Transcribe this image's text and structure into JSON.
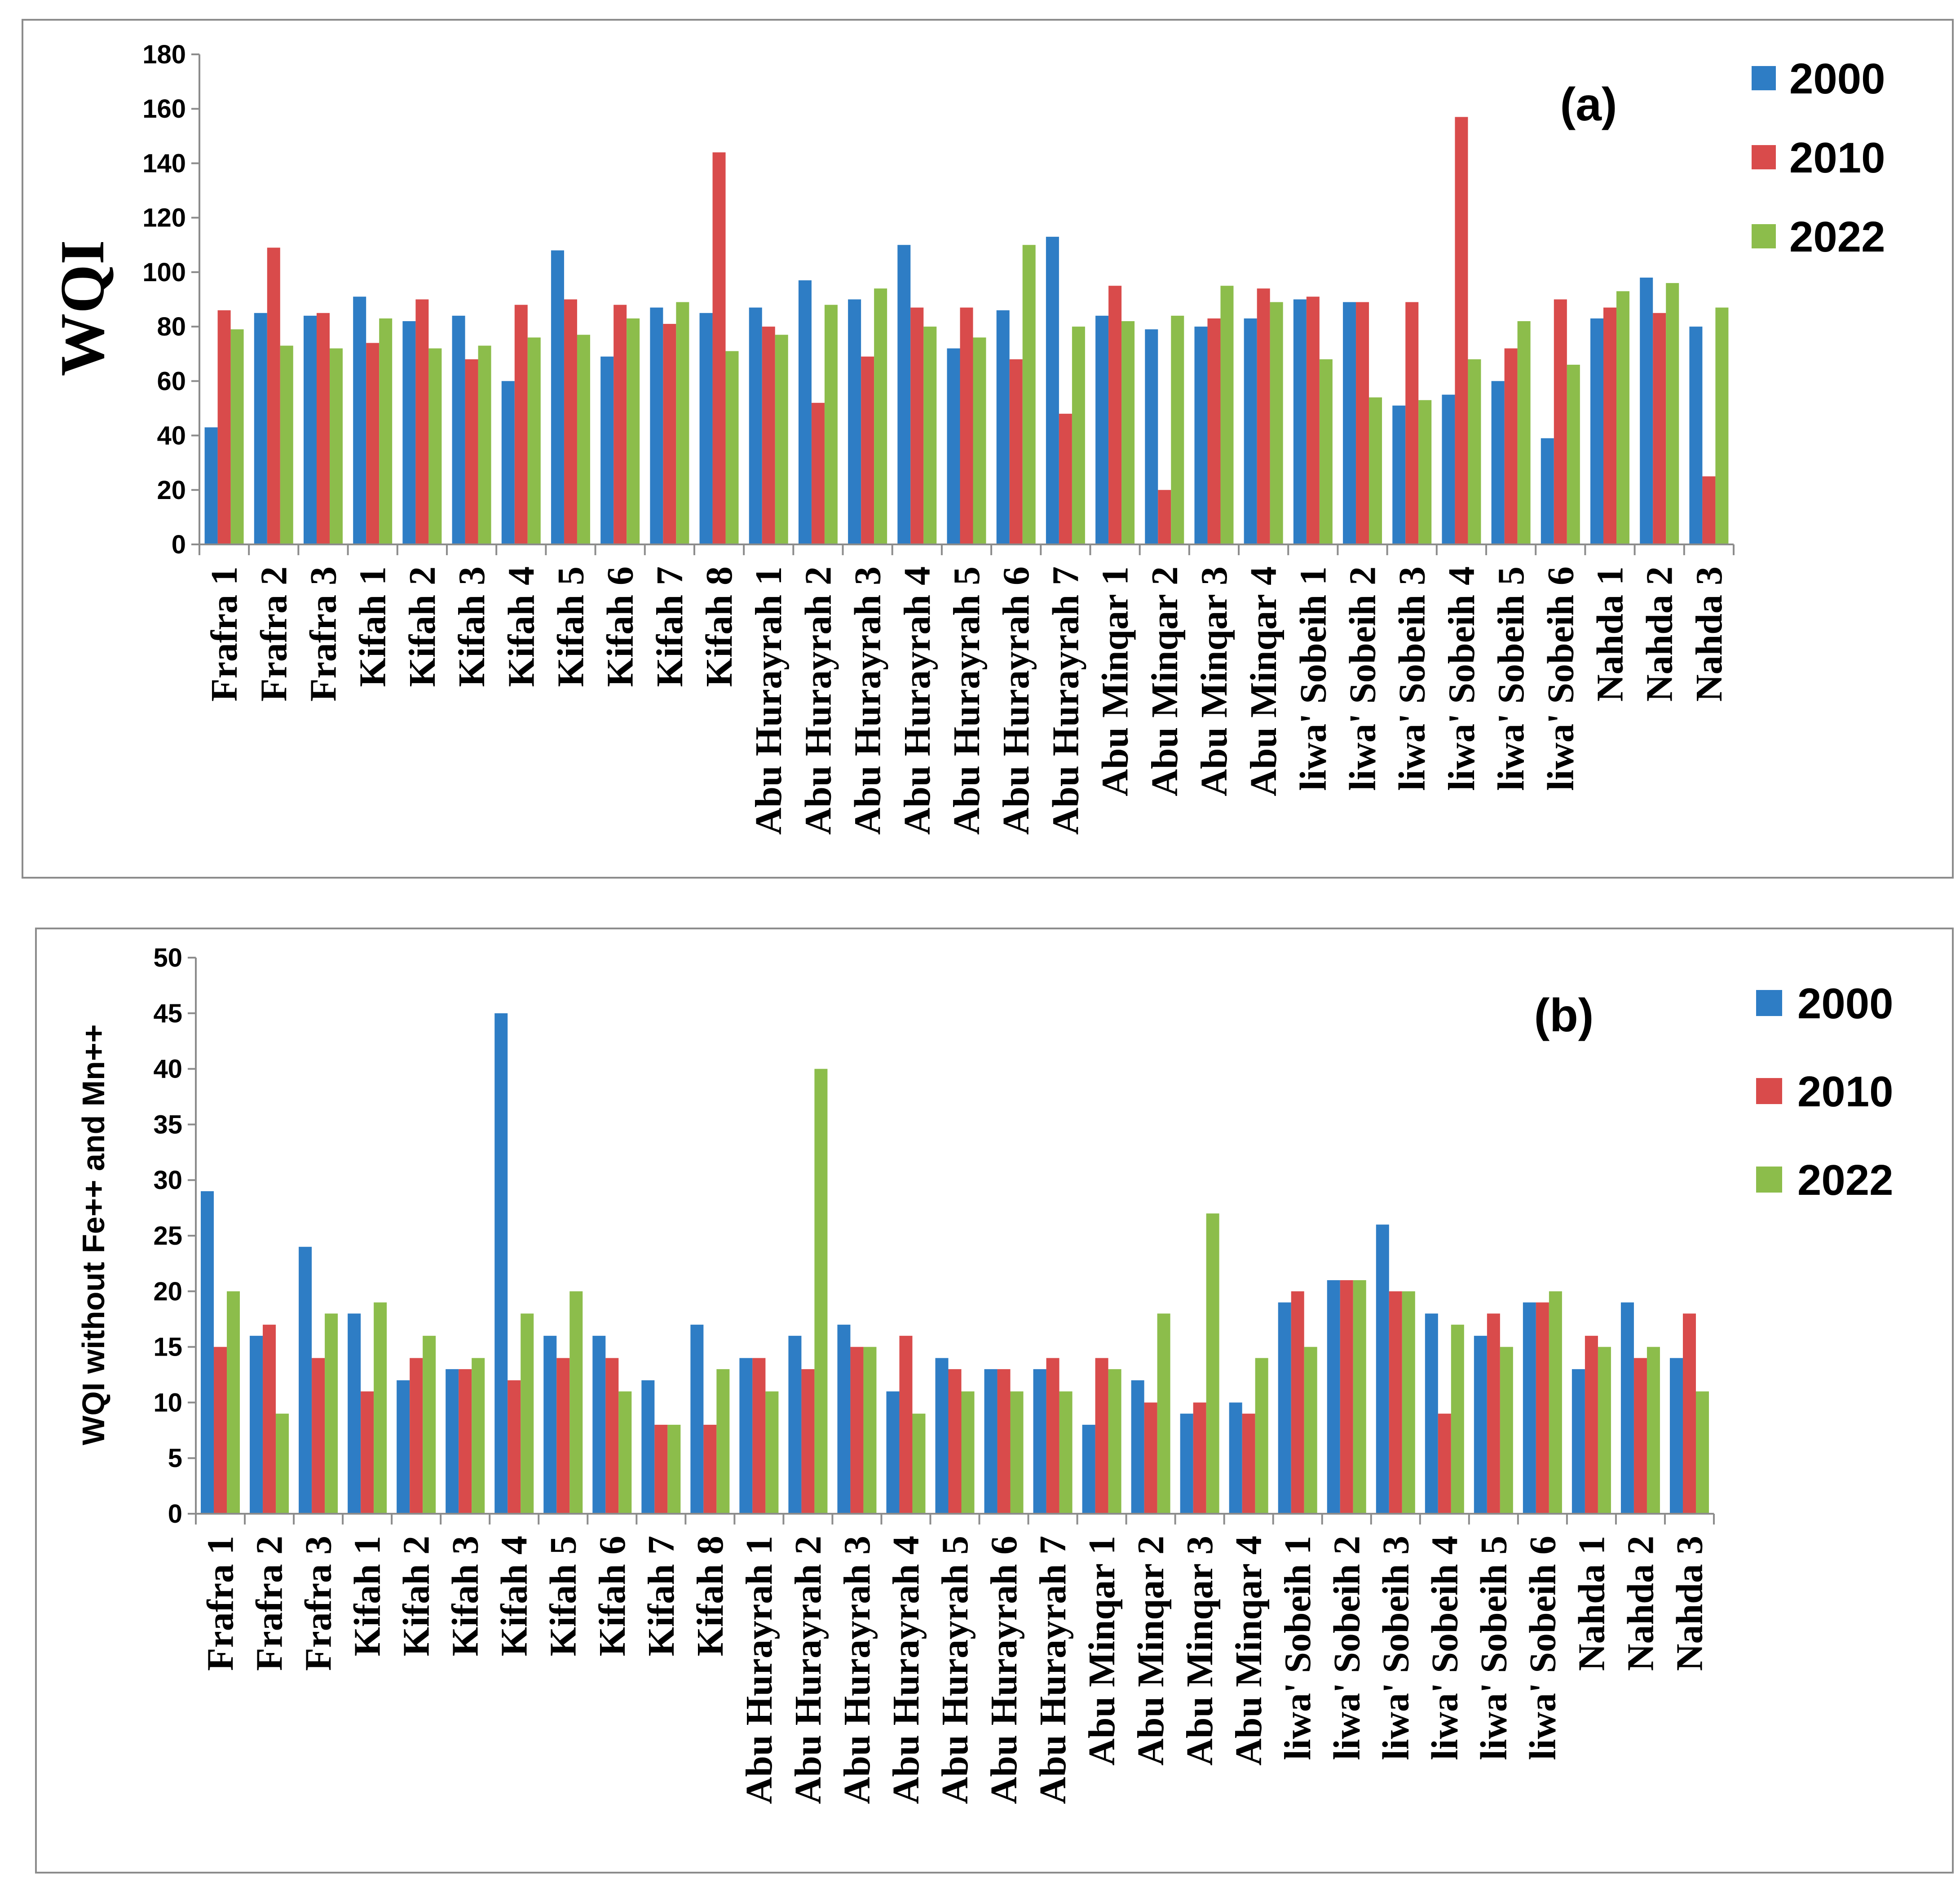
{
  "series_colors": [
    "#2e7dc5",
    "#d94b4b",
    "#8cbd4b"
  ],
  "chart_data": [
    {
      "type": "bar",
      "panel_label": "(a)",
      "ylabel": "WQI",
      "ylim": [
        0,
        180
      ],
      "yticks": [
        0,
        20,
        40,
        60,
        80,
        100,
        120,
        140,
        160,
        180
      ],
      "legend_position": "top-right",
      "categories": [
        "Frafra 1",
        "Frafra 2",
        "Frafra 3",
        "Kifah 1",
        "Kifah 2",
        "Kifah 3",
        "Kifah 4",
        "Kifah 5",
        "Kifah 6",
        "Kifah 7",
        "Kifah 8",
        "Abu Hurayrah 1",
        "Abu Hurayrah 2",
        "Abu Hurayrah 3",
        "Abu Hurayrah 4",
        "Abu Hurayrah 5",
        "Abu Hurayrah 6",
        "Abu Hurayrah 7",
        "Abu Minqar 1",
        "Abu Minqar 2",
        "Abu Minqar 3",
        "Abu Minqar 4",
        "liwa' Sobeih 1",
        "liwa' Sobeih 2",
        "liwa' Sobeih 3",
        "liwa' Sobeih 4",
        "liwa' Sobeih 5",
        "liwa' Sobeih 6",
        "Nahda 1",
        "Nahda 2",
        "Nahda 3"
      ],
      "series": [
        {
          "name": "2000",
          "values": [
            43,
            85,
            84,
            91,
            82,
            84,
            60,
            108,
            69,
            87,
            85,
            87,
            97,
            90,
            110,
            72,
            86,
            113,
            84,
            79,
            80,
            83,
            90,
            89,
            51,
            55,
            60,
            39,
            83,
            98,
            80
          ]
        },
        {
          "name": "2010",
          "values": [
            86,
            109,
            85,
            74,
            90,
            68,
            88,
            90,
            88,
            81,
            144,
            80,
            52,
            69,
            87,
            87,
            68,
            48,
            95,
            20,
            83,
            94,
            91,
            89,
            89,
            157,
            72,
            90,
            87,
            85,
            25
          ]
        },
        {
          "name": "2022",
          "values": [
            79,
            73,
            72,
            83,
            72,
            73,
            76,
            77,
            83,
            89,
            71,
            77,
            88,
            94,
            80,
            76,
            110,
            80,
            82,
            84,
            95,
            89,
            68,
            54,
            53,
            68,
            82,
            66,
            93,
            96,
            87
          ]
        }
      ]
    },
    {
      "type": "bar",
      "panel_label": "(b)",
      "ylabel": "WQI without Fe++ and Mn++",
      "ylim": [
        0,
        50
      ],
      "yticks": [
        0,
        5,
        10,
        15,
        20,
        25,
        30,
        35,
        40,
        45,
        50
      ],
      "legend_position": "top-right",
      "categories": [
        "Frafra 1",
        "Frafra 2",
        "Frafra 3",
        "Kifah 1",
        "Kifah 2",
        "Kifah 3",
        "Kifah 4",
        "Kifah 5",
        "Kifah 6",
        "Kifah 7",
        "Kifah 8",
        "Abu Hurayrah 1",
        "Abu Hurayrah 2",
        "Abu Hurayrah 3",
        "Abu Hurayrah 4",
        "Abu Hurayrah 5",
        "Abu Hurayrah 6",
        "Abu Hurayrah 7",
        "Abu Minqar 1",
        "Abu Minqar 2",
        "Abu Minqar 3",
        "Abu Minqar 4",
        "liwa' Sobeih 1",
        "liwa' Sobeih 2",
        "liwa' Sobeih 3",
        "liwa' Sobeih 4",
        "liwa' Sobeih 5",
        "liwa' Sobeih 6",
        "Nahda 1",
        "Nahda 2",
        "Nahda 3"
      ],
      "series": [
        {
          "name": "2000",
          "values": [
            29,
            16,
            24,
            18,
            12,
            13,
            45,
            16,
            16,
            12,
            17,
            14,
            16,
            17,
            11,
            14,
            13,
            13,
            8,
            12,
            9,
            10,
            19,
            21,
            26,
            18,
            16,
            19,
            13,
            19,
            14
          ]
        },
        {
          "name": "2010",
          "values": [
            15,
            17,
            14,
            11,
            14,
            13,
            12,
            14,
            14,
            8,
            8,
            14,
            13,
            15,
            16,
            13,
            13,
            14,
            14,
            10,
            10,
            9,
            20,
            21,
            20,
            9,
            18,
            19,
            16,
            14,
            18
          ]
        },
        {
          "name": "2022",
          "values": [
            20,
            9,
            18,
            19,
            16,
            14,
            18,
            20,
            11,
            8,
            13,
            11,
            40,
            15,
            9,
            11,
            11,
            11,
            13,
            18,
            27,
            14,
            15,
            21,
            20,
            17,
            15,
            20,
            15,
            15,
            11
          ]
        }
      ]
    }
  ]
}
